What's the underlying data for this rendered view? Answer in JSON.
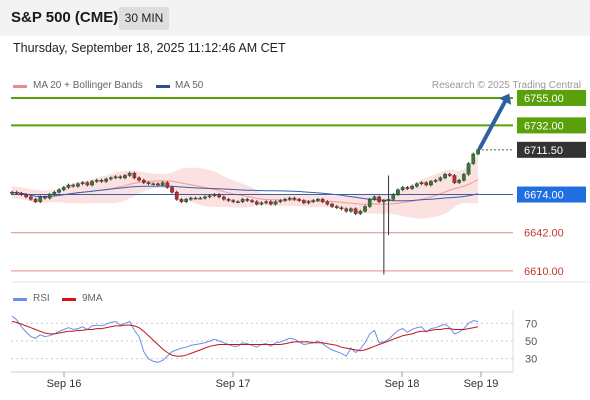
{
  "header": {
    "title": "S&P 500 (CME)",
    "timeframe": "30 MIN",
    "datetime": "Thursday, September 18, 2025 11:12:46 AM CET"
  },
  "credit": "Research © 2025 Trading Central",
  "colors": {
    "resistance": "#5aa00a",
    "support": "#e88a8a",
    "ma50": "#3a5fa8",
    "bollinger_fill": "#fbdcdc",
    "bollinger_line": "#f19a9a",
    "candle_up": "#2f7d32",
    "candle_down": "#c62828",
    "rsi": "#6b8ee6",
    "rsi_ma": "#c01818",
    "arrow": "#2e5fa0"
  },
  "chart_data": [
    {
      "type": "candlestick",
      "legend": [
        {
          "label": "MA 20 + Bollinger Bands",
          "color": "#f08a8a"
        },
        {
          "label": "MA 50",
          "color": "#2b4f8f"
        }
      ],
      "x_ticks": [
        "Sep 16",
        "Sep 17",
        "Sep 18",
        "Sep 19"
      ],
      "ylim": [
        6604,
        6760
      ],
      "levels": [
        {
          "value": 6755.0,
          "label": "6755.00",
          "kind": "resistance"
        },
        {
          "value": 6732.0,
          "label": "6732.00",
          "kind": "resistance"
        },
        {
          "value": 6711.5,
          "label": "6711.50",
          "kind": "last"
        },
        {
          "value": 6674.0,
          "label": "6674.00",
          "kind": "pivot"
        },
        {
          "value": 6642.0,
          "label": "6642.00",
          "kind": "support"
        },
        {
          "value": 6610.0,
          "label": "6610.00",
          "kind": "support"
        }
      ],
      "close": [
        6676,
        6675,
        6674,
        6672,
        6670,
        6668,
        6672,
        6671,
        6674,
        6676,
        6678,
        6680,
        6682,
        6681,
        6683,
        6684,
        6682,
        6685,
        6686,
        6685,
        6687,
        6688,
        6689,
        6688,
        6690,
        6692,
        6688,
        6686,
        6684,
        6683,
        6683,
        6682,
        6684,
        6680,
        6676,
        6670,
        6668,
        6670,
        6671,
        6671,
        6671,
        6672,
        6673,
        6674,
        6672,
        6670,
        6669,
        6668,
        6668,
        6670,
        6669,
        6668,
        6666,
        6667,
        6668,
        6666,
        6668,
        6669,
        6670,
        6671,
        6670,
        6669,
        6667,
        6668,
        6669,
        6670,
        6668,
        6666,
        6664,
        6663,
        6662,
        6660,
        6662,
        6658,
        6660,
        6664,
        6670,
        6672,
        6668,
        6669,
        6670,
        6674,
        6678,
        6680,
        6679,
        6681,
        6683,
        6684,
        6682,
        6685,
        6686,
        6688,
        6691,
        6690,
        6684,
        6686,
        6691,
        6700,
        6708,
        6711.5
      ]
    },
    {
      "type": "line",
      "name": "RSI",
      "legend": [
        {
          "label": "RSI",
          "color": "#6b8ee6"
        },
        {
          "label": "9MA",
          "color": "#e01010"
        }
      ],
      "y_ticks": [
        70,
        50,
        30
      ],
      "ylim": [
        15,
        85
      ],
      "series": [
        {
          "name": "RSI",
          "values": [
            78,
            74,
            66,
            60,
            55,
            53,
            57,
            55,
            56,
            58,
            61,
            63,
            65,
            63,
            64,
            66,
            63,
            67,
            68,
            67,
            69,
            71,
            72,
            68,
            70,
            72,
            62,
            55,
            38,
            30,
            27,
            26,
            28,
            33,
            38,
            40,
            42,
            43,
            45,
            46,
            47,
            48,
            50,
            52,
            50,
            48,
            46,
            44,
            44,
            48,
            47,
            45,
            43,
            46,
            47,
            44,
            48,
            49,
            51,
            53,
            52,
            49,
            46,
            47,
            48,
            50,
            47,
            43,
            40,
            38,
            36,
            33,
            42,
            37,
            41,
            48,
            58,
            62,
            48,
            49,
            52,
            57,
            62,
            64,
            60,
            63,
            65,
            66,
            60,
            64,
            65,
            67,
            69,
            65,
            58,
            60,
            64,
            70,
            73,
            72
          ]
        },
        {
          "name": "9MA",
          "values": [
            72,
            71,
            69,
            67,
            65,
            63,
            61,
            59,
            58,
            58,
            59,
            60,
            61,
            61,
            62,
            62,
            63,
            63,
            64,
            64,
            65,
            66,
            67,
            67,
            68,
            68,
            67,
            65,
            61,
            56,
            51,
            46,
            41,
            37,
            34,
            33,
            33,
            34,
            36,
            38,
            40,
            42,
            44,
            45,
            46,
            46,
            46,
            46,
            46,
            46,
            46,
            46,
            46,
            46,
            46,
            46,
            46,
            46,
            47,
            48,
            49,
            49,
            49,
            49,
            48,
            48,
            48,
            47,
            46,
            45,
            43,
            42,
            41,
            40,
            39,
            40,
            42,
            44,
            46,
            48,
            50,
            52,
            54,
            56,
            57,
            58,
            60,
            61,
            61,
            62,
            63,
            63,
            64,
            64,
            63,
            63,
            63,
            64,
            65,
            66
          ]
        }
      ]
    }
  ]
}
